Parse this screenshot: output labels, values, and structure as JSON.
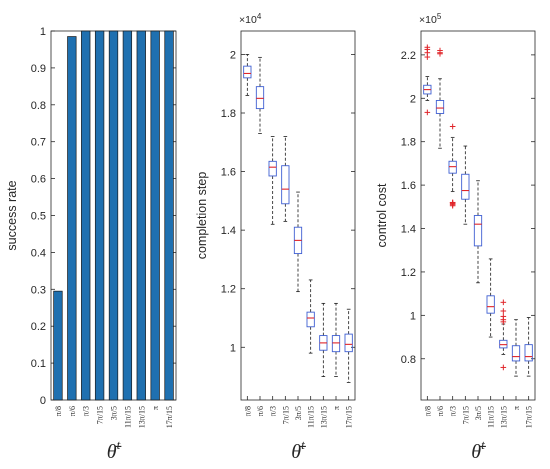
{
  "figure": {
    "xlabel_base": "θ̄",
    "xlabel_sup": "t"
  },
  "chart_data": [
    {
      "type": "bar",
      "ylabel": "success rate",
      "ylim": [
        0,
        1
      ],
      "yticks": [
        0,
        0.1,
        0.2,
        0.3,
        0.4,
        0.5,
        0.6,
        0.7,
        0.8,
        0.9,
        1
      ],
      "ytick_labels": [
        "0",
        "0.1",
        "0.2",
        "0.3",
        "0.4",
        "0.5",
        "0.6",
        "0.7",
        "0.8",
        "0.9",
        "1"
      ],
      "categories": [
        "π/8",
        "π/6",
        "π/3",
        "7π/15",
        "3π/5",
        "11π/15",
        "13π/15",
        "π",
        "17π/15"
      ],
      "values": [
        0.295,
        0.985,
        1,
        1,
        1,
        1,
        1,
        1,
        1
      ],
      "colors": {
        "bar": "#1f70b0",
        "edge": "#1a1a1a"
      }
    },
    {
      "type": "box",
      "ylabel": "completion step",
      "exponent_label": "×10",
      "exponent_power": "4",
      "ylim": [
        0.82,
        2.08
      ],
      "yticks": [
        1,
        1.2,
        1.4,
        1.6,
        1.8,
        2
      ],
      "ytick_labels": [
        "1",
        "1.2",
        "1.4",
        "1.6",
        "1.8",
        "2"
      ],
      "categories": [
        "π/8",
        "π/6",
        "π/3",
        "7π/15",
        "3π/5",
        "11π/15",
        "13π/15",
        "π",
        "17π/15"
      ],
      "boxes": [
        {
          "low": 1.86,
          "q1": 1.92,
          "median": 1.935,
          "q3": 1.96,
          "high": 2.0,
          "outliers": []
        },
        {
          "low": 1.73,
          "q1": 1.815,
          "median": 1.85,
          "q3": 1.89,
          "high": 1.99,
          "outliers": []
        },
        {
          "low": 1.42,
          "q1": 1.585,
          "median": 1.615,
          "q3": 1.635,
          "high": 1.72,
          "outliers": []
        },
        {
          "low": 1.43,
          "q1": 1.49,
          "median": 1.54,
          "q3": 1.62,
          "high": 1.72,
          "outliers": []
        },
        {
          "low": 1.19,
          "q1": 1.32,
          "median": 1.365,
          "q3": 1.41,
          "high": 1.53,
          "outliers": []
        },
        {
          "low": 0.98,
          "q1": 1.07,
          "median": 1.1,
          "q3": 1.12,
          "high": 1.23,
          "outliers": []
        },
        {
          "low": 0.9,
          "q1": 0.99,
          "median": 1.015,
          "q3": 1.04,
          "high": 1.15,
          "outliers": []
        },
        {
          "low": 0.9,
          "q1": 0.985,
          "median": 1.015,
          "q3": 1.04,
          "high": 1.15,
          "outliers": []
        },
        {
          "low": 0.88,
          "q1": 0.985,
          "median": 1.01,
          "q3": 1.045,
          "high": 1.13,
          "outliers": []
        }
      ],
      "colors": {
        "box": "#3f5fd2",
        "median": "#e0252a",
        "whisker": "#1a1a1a"
      }
    },
    {
      "type": "box",
      "ylabel": "control cost",
      "exponent_label": "×10",
      "exponent_power": "5",
      "ylim": [
        0.61,
        2.31
      ],
      "yticks": [
        0.8,
        1,
        1.2,
        1.4,
        1.6,
        1.8,
        2,
        2.2
      ],
      "ytick_labels": [
        "0.8",
        "1",
        "1.2",
        "1.4",
        "1.6",
        "1.8",
        "2",
        "2.2"
      ],
      "categories": [
        "π/8",
        "π/6",
        "π/3",
        "7π/15",
        "3π/5",
        "11π/15",
        "13π/15",
        "π",
        "17π/15"
      ],
      "boxes": [
        {
          "low": 1.99,
          "q1": 2.02,
          "median": 2.04,
          "q3": 2.06,
          "high": 2.1,
          "outliers": [
            1.935,
            2.19,
            2.21,
            2.225,
            2.235
          ]
        },
        {
          "low": 1.77,
          "q1": 1.93,
          "median": 1.955,
          "q3": 1.99,
          "high": 2.09,
          "outliers": [
            2.205,
            2.21,
            2.22
          ]
        },
        {
          "low": 1.57,
          "q1": 1.655,
          "median": 1.685,
          "q3": 1.71,
          "high": 1.82,
          "outliers": [
            1.505,
            1.51,
            1.515,
            1.52,
            1.52,
            1.87
          ]
        },
        {
          "low": 1.42,
          "q1": 1.535,
          "median": 1.575,
          "q3": 1.65,
          "high": 1.78,
          "outliers": []
        },
        {
          "low": 1.15,
          "q1": 1.32,
          "median": 1.42,
          "q3": 1.46,
          "high": 1.62,
          "outliers": []
        },
        {
          "low": 0.9,
          "q1": 1.01,
          "median": 1.04,
          "q3": 1.09,
          "high": 1.26,
          "outliers": []
        },
        {
          "low": 0.82,
          "q1": 0.85,
          "median": 0.865,
          "q3": 0.885,
          "high": 0.96,
          "outliers": [
            0.76,
            0.97,
            0.98,
            0.995,
            1.02,
            1.06
          ]
        },
        {
          "low": 0.72,
          "q1": 0.79,
          "median": 0.81,
          "q3": 0.86,
          "high": 0.98,
          "outliers": []
        },
        {
          "low": 0.72,
          "q1": 0.79,
          "median": 0.81,
          "q3": 0.865,
          "high": 0.99,
          "outliers": []
        }
      ],
      "colors": {
        "box": "#3f5fd2",
        "median": "#e0252a",
        "whisker": "#1a1a1a",
        "outlier": "#e0252a"
      }
    }
  ]
}
